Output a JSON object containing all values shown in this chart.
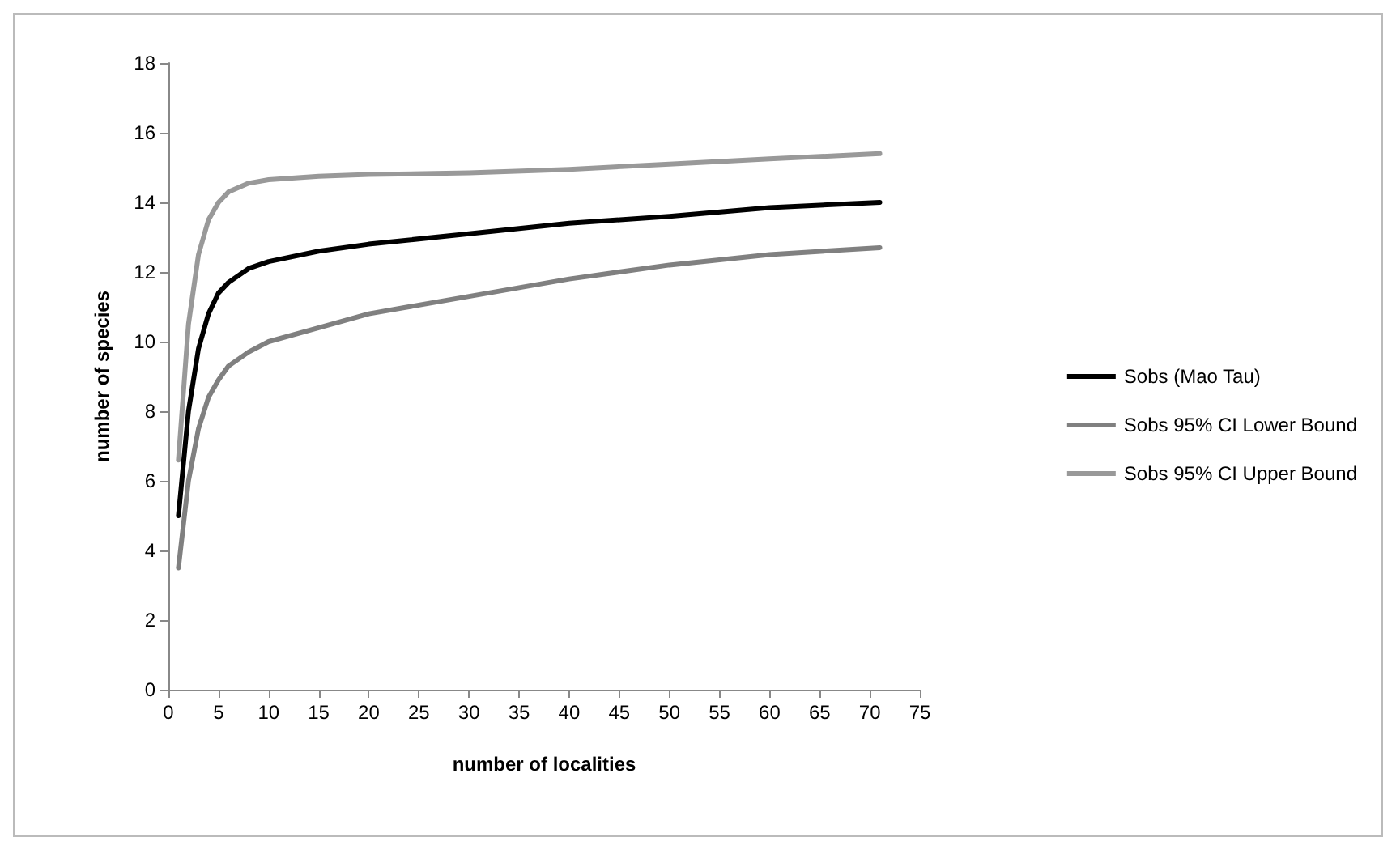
{
  "chart_data": {
    "type": "line",
    "xlabel": "number of localities",
    "ylabel": "number of species",
    "x": [
      1,
      2,
      3,
      4,
      5,
      6,
      8,
      10,
      15,
      20,
      30,
      40,
      50,
      60,
      71
    ],
    "series": [
      {
        "name": "Sobs (Mao Tau)",
        "color": "#000000",
        "values": [
          5.0,
          8.0,
          9.8,
          10.8,
          11.4,
          11.7,
          12.1,
          12.3,
          12.6,
          12.8,
          13.1,
          13.4,
          13.6,
          13.85,
          14.0
        ]
      },
      {
        "name": "Sobs 95% CI Lower Bound",
        "color": "#808080",
        "values": [
          3.5,
          6.0,
          7.5,
          8.4,
          8.9,
          9.3,
          9.7,
          10.0,
          10.4,
          10.8,
          11.3,
          11.8,
          12.2,
          12.5,
          12.7
        ]
      },
      {
        "name": "Sobs 95% CI Upper Bound",
        "color": "#999999",
        "values": [
          6.6,
          10.5,
          12.5,
          13.5,
          14.0,
          14.3,
          14.55,
          14.65,
          14.75,
          14.8,
          14.85,
          14.95,
          15.1,
          15.25,
          15.4
        ]
      }
    ],
    "xlim": [
      0,
      75
    ],
    "xticks": [
      0,
      5,
      10,
      15,
      20,
      25,
      30,
      35,
      40,
      45,
      50,
      55,
      60,
      65,
      70,
      75
    ],
    "ylim": [
      0,
      18
    ],
    "yticks": [
      0,
      2,
      4,
      6,
      8,
      10,
      12,
      14,
      16,
      18
    ],
    "grid": false,
    "legend": "right",
    "marker": "none",
    "line_style": "solid"
  }
}
